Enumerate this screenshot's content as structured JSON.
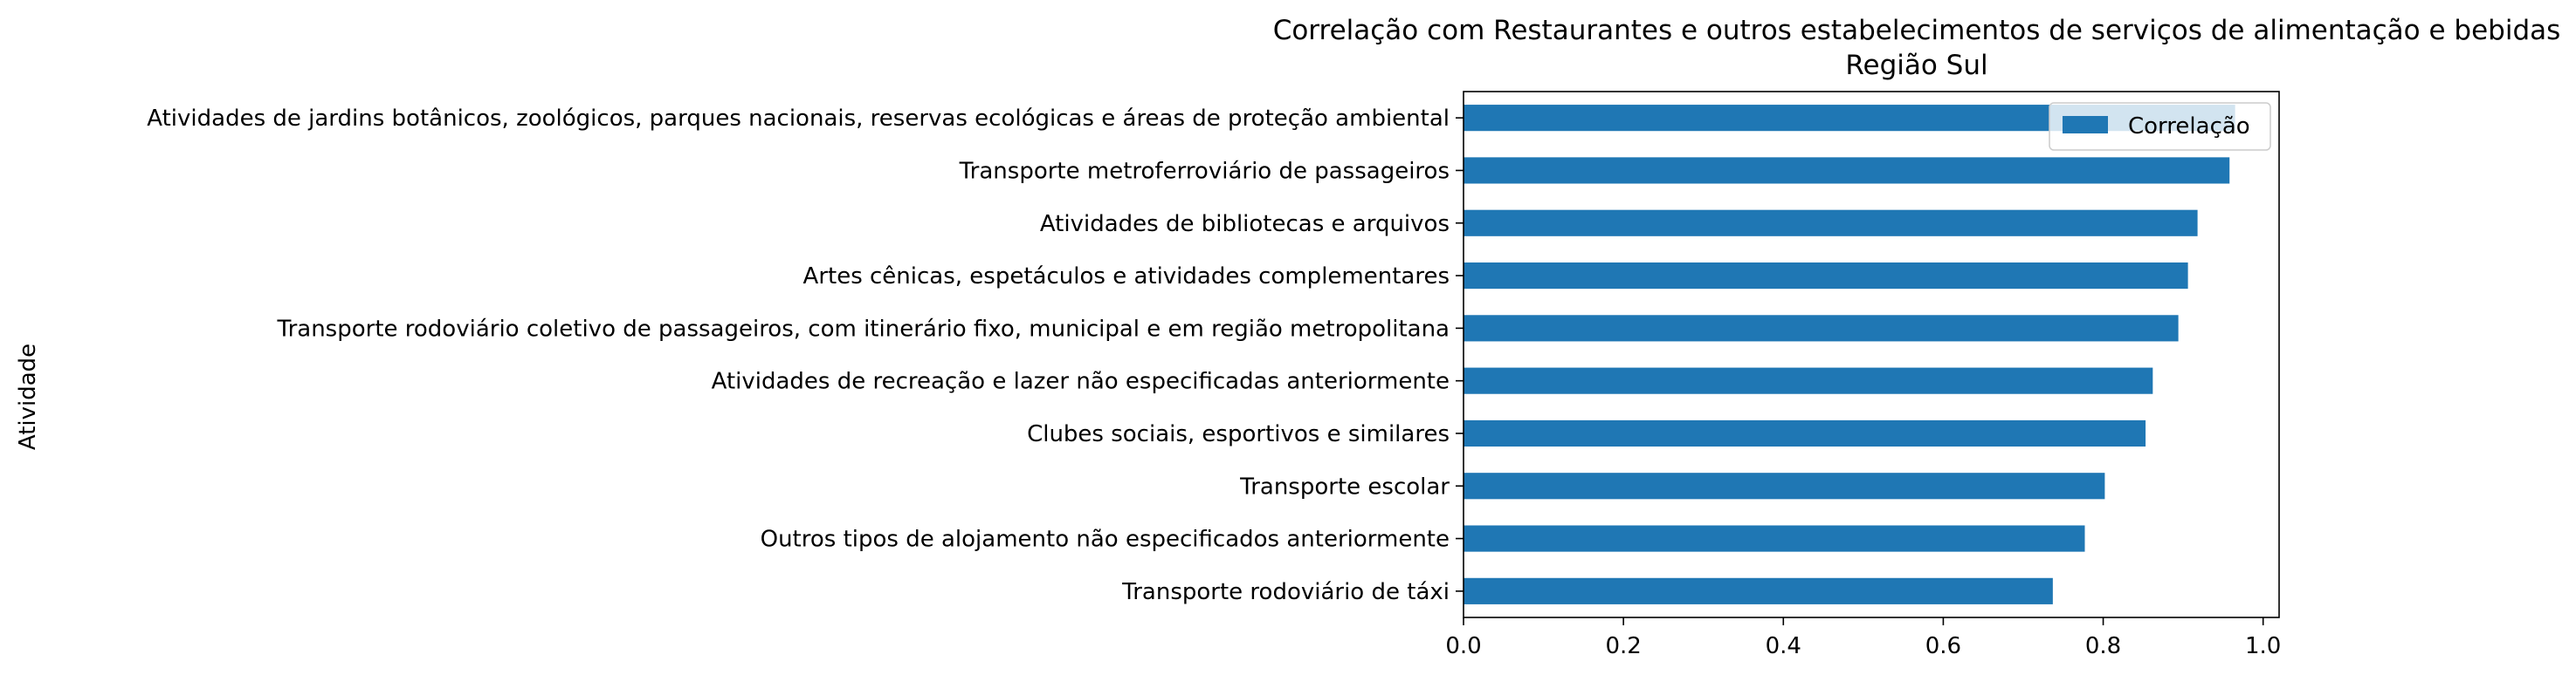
{
  "chart_data": {
    "type": "bar",
    "orientation": "horizontal",
    "title": "Correlação com Restaurantes e outros estabelecimentos de serviços de alimentação e bebidas",
    "subtitle": "Região Sul",
    "xlabel": "",
    "ylabel": "Atividade",
    "xlim": [
      0,
      1.02
    ],
    "x_ticks": [
      "0.0",
      "0.2",
      "0.4",
      "0.6",
      "0.8",
      "1.0"
    ],
    "grid": false,
    "legend_position": "top-right",
    "bar_color": "#1f77b4",
    "categories": [
      "Atividades de jardins botânicos, zoológicos, parques nacionais, reservas ecológicas e áreas de proteção ambiental",
      "Transporte metroferroviário de passageiros",
      "Atividades de bibliotecas e arquivos",
      "Artes cênicas, espetáculos e atividades complementares",
      "Transporte rodoviário coletivo de passageiros, com itinerário fixo, municipal e em região metropolitana",
      "Atividades de recreação e lazer não especificadas anteriormente",
      "Clubes sociais, esportivos e similares",
      "Transporte escolar",
      "Outros tipos de alojamento não especificados anteriormente",
      "Transporte rodoviário de táxi"
    ],
    "series": [
      {
        "name": "Correlação",
        "values": [
          0.965,
          0.958,
          0.918,
          0.906,
          0.894,
          0.862,
          0.853,
          0.802,
          0.777,
          0.737
        ]
      }
    ]
  }
}
